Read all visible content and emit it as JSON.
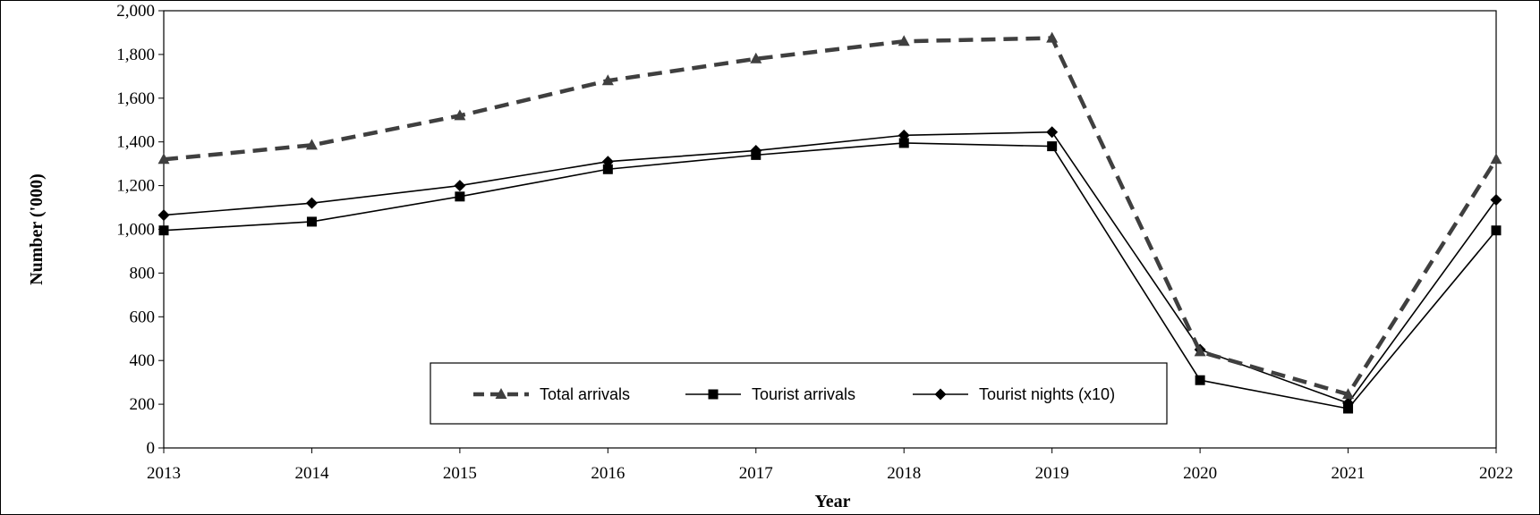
{
  "chart_data": {
    "type": "line",
    "x": [
      "2013",
      "2014",
      "2015",
      "2016",
      "2017",
      "2018",
      "2019",
      "2020",
      "2021",
      "2022"
    ],
    "xlabel": "Year",
    "ylabel": "Number  ('000)",
    "ylim": [
      0,
      2000
    ],
    "yticks": [
      0,
      200,
      400,
      600,
      800,
      1000,
      1200,
      1400,
      1600,
      1800,
      2000
    ],
    "ytick_labels": [
      "0",
      "200",
      "400",
      "600",
      "800",
      "1,000",
      "1,200",
      "1,400",
      "1,600",
      "1,800",
      "2,000"
    ],
    "grid": false,
    "legend_position": "bottom-center",
    "series": [
      {
        "name": "Total arrivals",
        "values": [
          1320,
          1385,
          1520,
          1680,
          1780,
          1860,
          1875,
          440,
          245,
          1320
        ],
        "color": "#3f3f3f",
        "line_style": "dashed",
        "marker": "triangle"
      },
      {
        "name": "Tourist arrivals",
        "values": [
          995,
          1035,
          1150,
          1275,
          1340,
          1395,
          1380,
          310,
          180,
          995
        ],
        "color": "#000000",
        "line_style": "solid",
        "marker": "square"
      },
      {
        "name": "Tourist nights (x10)",
        "values": [
          1065,
          1120,
          1200,
          1310,
          1360,
          1430,
          1445,
          450,
          205,
          1135
        ],
        "color": "#000000",
        "line_style": "solid",
        "marker": "diamond"
      }
    ]
  }
}
